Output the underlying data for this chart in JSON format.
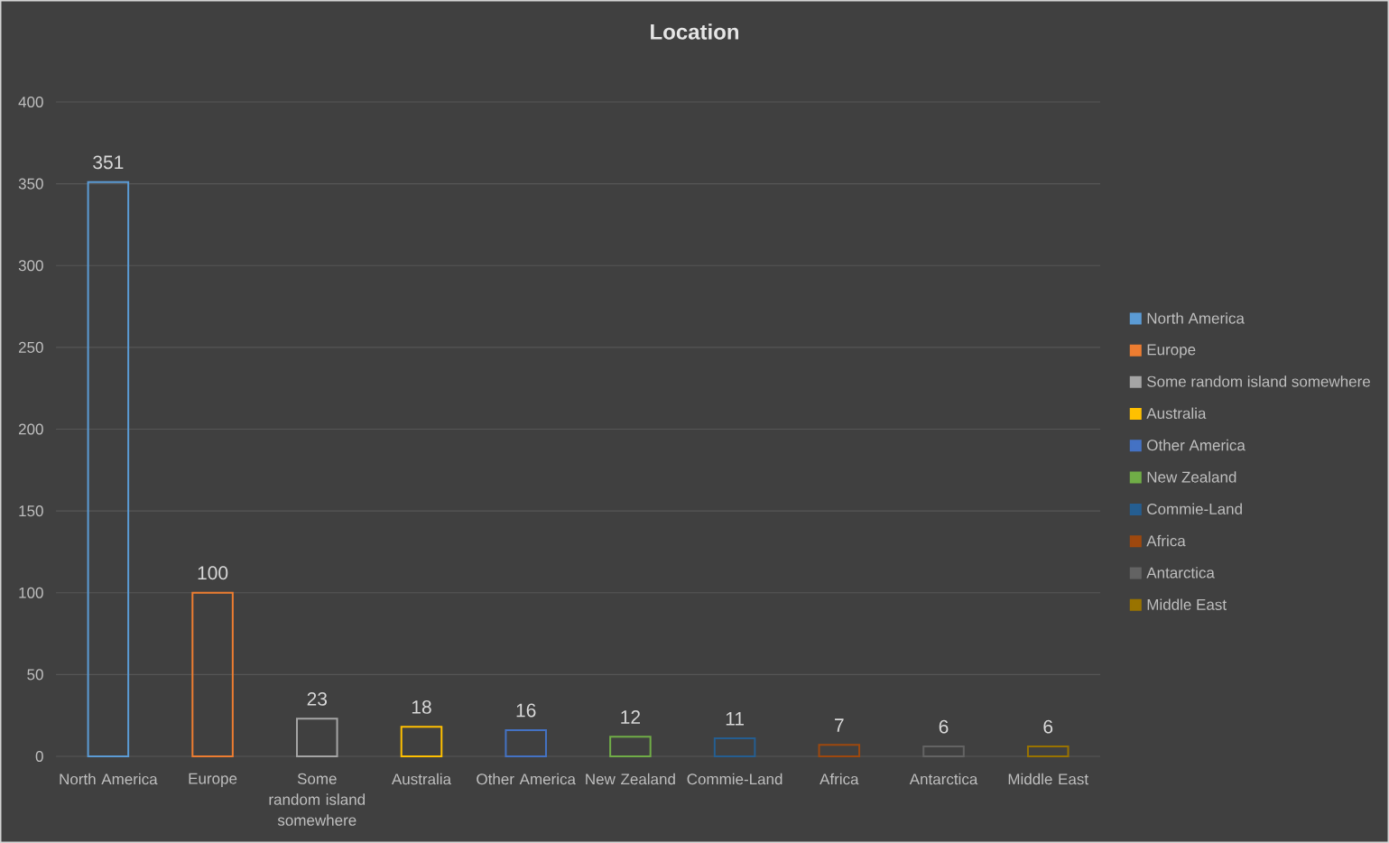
{
  "chart_data": {
    "type": "bar",
    "title": "Location",
    "categories": [
      "North America",
      "Europe",
      "Some random island somewhere",
      "Australia",
      "Other America",
      "New Zealand",
      "Commie-Land",
      "Africa",
      "Antarctica",
      "Middle East"
    ],
    "series": [
      {
        "name": "North America",
        "color": "#5b9bd5",
        "values": [
          351,
          null,
          null,
          null,
          null,
          null,
          null,
          null,
          null,
          null
        ]
      },
      {
        "name": "Europe",
        "color": "#ed7d31",
        "values": [
          null,
          100,
          null,
          null,
          null,
          null,
          null,
          null,
          null,
          null
        ]
      },
      {
        "name": "Some random island somewhere",
        "color": "#a5a5a5",
        "values": [
          null,
          null,
          23,
          null,
          null,
          null,
          null,
          null,
          null,
          null
        ]
      },
      {
        "name": "Australia",
        "color": "#ffc000",
        "values": [
          null,
          null,
          null,
          18,
          null,
          null,
          null,
          null,
          null,
          null
        ]
      },
      {
        "name": "Other America",
        "color": "#4472c4",
        "values": [
          null,
          null,
          null,
          null,
          16,
          null,
          null,
          null,
          null,
          null
        ]
      },
      {
        "name": "New Zealand",
        "color": "#70ad47",
        "values": [
          null,
          null,
          null,
          null,
          null,
          12,
          null,
          null,
          null,
          null
        ]
      },
      {
        "name": "Commie-Land",
        "color": "#255e91",
        "values": [
          null,
          null,
          null,
          null,
          null,
          null,
          11,
          null,
          null,
          null
        ]
      },
      {
        "name": "Africa",
        "color": "#9e480e",
        "values": [
          null,
          null,
          null,
          null,
          null,
          null,
          null,
          7,
          null,
          null
        ]
      },
      {
        "name": "Antarctica",
        "color": "#636363",
        "values": [
          null,
          null,
          null,
          null,
          null,
          null,
          null,
          null,
          6,
          null
        ]
      },
      {
        "name": "Middle East",
        "color": "#997300",
        "values": [
          null,
          null,
          null,
          null,
          null,
          null,
          null,
          null,
          null,
          6
        ]
      }
    ],
    "ylim": [
      0,
      400
    ],
    "yticks": [
      0,
      50,
      100,
      150,
      200,
      250,
      300,
      350,
      400
    ],
    "grid": "y",
    "legend": "right",
    "data_labels": true
  }
}
